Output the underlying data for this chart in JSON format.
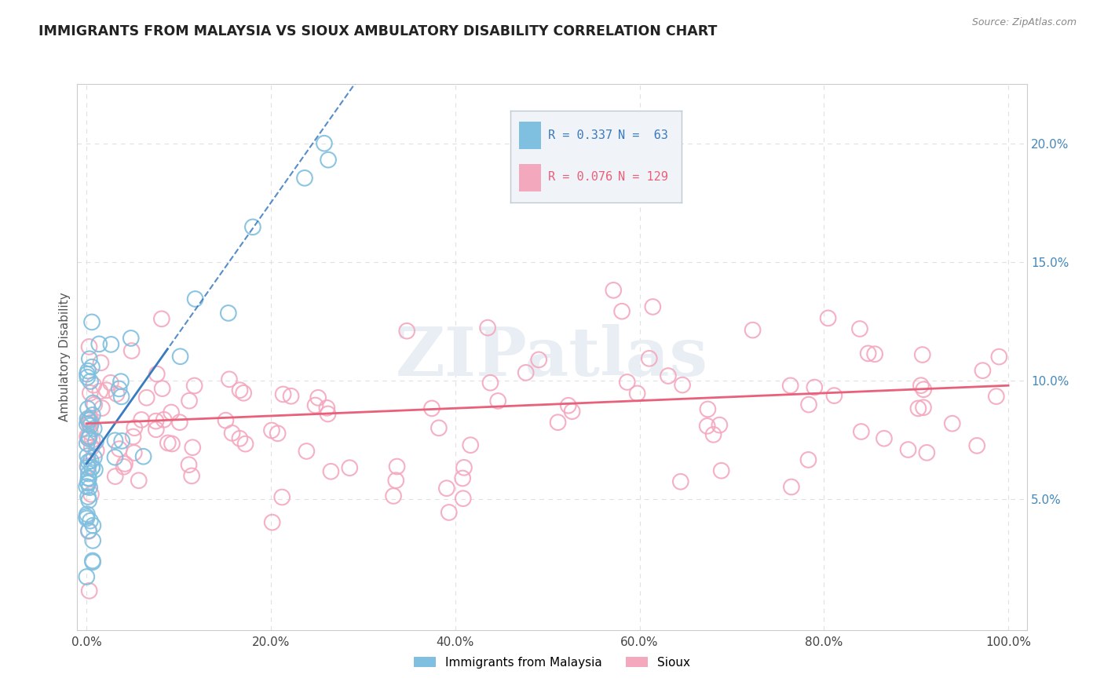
{
  "title": "IMMIGRANTS FROM MALAYSIA VS SIOUX AMBULATORY DISABILITY CORRELATION CHART",
  "source": "Source: ZipAtlas.com",
  "ylabel_label": "Ambulatory Disability",
  "x_tick_labels": [
    "0.0%",
    "20.0%",
    "40.0%",
    "60.0%",
    "80.0%",
    "100.0%"
  ],
  "x_tick_values": [
    0.0,
    0.2,
    0.4,
    0.6,
    0.8,
    1.0
  ],
  "y_tick_labels": [
    "5.0%",
    "10.0%",
    "15.0%",
    "20.0%"
  ],
  "y_tick_values": [
    0.05,
    0.1,
    0.15,
    0.2
  ],
  "xlim": [
    -0.01,
    1.02
  ],
  "ylim": [
    -0.005,
    0.225
  ],
  "color_blue": "#7fbfdf",
  "color_pink": "#f4a8be",
  "color_blue_line": "#3a7abf",
  "color_pink_line": "#e8607a",
  "watermark_color": "#e8eef4",
  "background_color": "#ffffff",
  "grid_color": "#e0e0e0",
  "legend_box_color": "#f0f4f8",
  "legend_border_color": "#c0c8d0",
  "blue_r": "R = 0.337",
  "blue_n": "N =  63",
  "pink_r": "R = 0.076",
  "pink_n": "N = 129",
  "blue_line_intercept": 0.065,
  "blue_line_slope": 0.55,
  "blue_line_xmax": 0.27,
  "pink_line_intercept": 0.082,
  "pink_line_slope": 0.016,
  "pink_line_xmax": 1.0
}
